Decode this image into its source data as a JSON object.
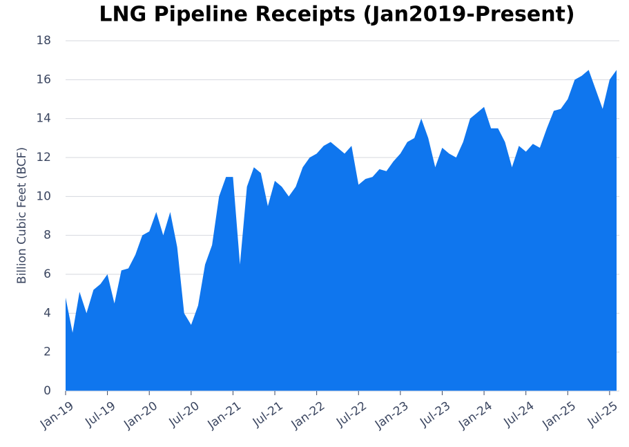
{
  "chart_data": {
    "type": "area",
    "title": "LNG Pipeline Receipts (Jan2019-Present)",
    "y_label": "Billion Cubic Feet (BCF)",
    "categories": [
      "Jan-19",
      null,
      null,
      null,
      null,
      null,
      "Jul-19",
      null,
      null,
      null,
      null,
      null,
      "Jan-20",
      null,
      null,
      null,
      null,
      null,
      "Jul-20",
      null,
      null,
      null,
      null,
      null,
      "Jan-21",
      null,
      null,
      null,
      null,
      null,
      "Jul-21",
      null,
      null,
      null,
      null,
      null,
      "Jan-22",
      null,
      null,
      null,
      null,
      null,
      "Jul-22",
      null,
      null,
      null,
      null,
      null,
      "Jan-23",
      null,
      null,
      null,
      null,
      null,
      "Jul-23",
      null,
      null,
      null,
      null,
      null,
      "Jan-24",
      null,
      null,
      null,
      null,
      null,
      "Jul-24",
      null,
      null,
      null,
      null,
      null,
      "Jan-25",
      null,
      null,
      null,
      null,
      null,
      "Jul-25",
      null
    ],
    "values": [
      4.8,
      3.0,
      5.1,
      4.0,
      5.2,
      5.5,
      6.0,
      4.5,
      6.2,
      6.3,
      7.0,
      8.0,
      8.2,
      9.2,
      8.0,
      9.2,
      7.4,
      4.0,
      3.4,
      4.4,
      6.5,
      7.5,
      10.0,
      11.0,
      11.0,
      6.5,
      10.5,
      11.5,
      11.2,
      9.5,
      10.8,
      10.5,
      10.0,
      10.5,
      11.5,
      12.0,
      12.2,
      12.6,
      12.8,
      12.5,
      12.2,
      12.6,
      10.6,
      10.9,
      11.0,
      11.4,
      11.3,
      11.8,
      12.2,
      12.8,
      13.0,
      14.0,
      13.0,
      11.5,
      12.5,
      12.2,
      12.0,
      12.8,
      14.0,
      14.3,
      14.6,
      13.5,
      13.5,
      12.8,
      11.5,
      12.6,
      12.3,
      12.7,
      12.5,
      13.5,
      14.4,
      14.5,
      15.0,
      16.0,
      16.2,
      16.5,
      15.5,
      14.5,
      16.0,
      16.5
    ],
    "color": "#0f76ee",
    "ylim": [
      0,
      18
    ],
    "yticks": [
      0,
      2,
      4,
      6,
      8,
      10,
      12,
      14,
      16,
      18
    ],
    "grid": true
  }
}
